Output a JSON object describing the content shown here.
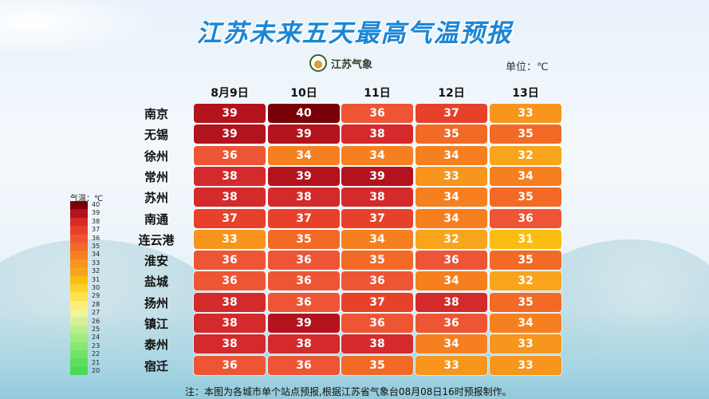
{
  "title": "江苏未来五天最高气温预报",
  "logo_text": "江苏气象",
  "unit": "单位：℃",
  "dates": [
    "8月9日",
    "10日",
    "11日",
    "12日",
    "13日"
  ],
  "cities": [
    "南京",
    "无锡",
    "徐州",
    "常州",
    "苏州",
    "南通",
    "连云港",
    "淮安",
    "盐城",
    "扬州",
    "镇江",
    "泰州",
    "宿迁"
  ],
  "temperatures": [
    [
      39,
      40,
      36,
      37,
      33
    ],
    [
      39,
      39,
      38,
      35,
      35
    ],
    [
      36,
      34,
      34,
      34,
      32
    ],
    [
      38,
      39,
      39,
      33,
      34
    ],
    [
      38,
      38,
      38,
      34,
      35
    ],
    [
      37,
      37,
      37,
      34,
      36
    ],
    [
      33,
      35,
      34,
      32,
      31
    ],
    [
      36,
      36,
      35,
      36,
      35
    ],
    [
      36,
      36,
      36,
      34,
      32
    ],
    [
      38,
      36,
      37,
      38,
      35
    ],
    [
      38,
      39,
      36,
      36,
      34
    ],
    [
      38,
      38,
      38,
      34,
      33
    ],
    [
      36,
      36,
      35,
      33,
      33
    ]
  ],
  "legend": {
    "title": "气温：℃",
    "levels": [
      40,
      39,
      38,
      37,
      36,
      35,
      34,
      33,
      32,
      31,
      30,
      29,
      28,
      27,
      26,
      25,
      24,
      23,
      22,
      21,
      20
    ]
  },
  "color_scale": {
    "40": "#7a0008",
    "39": "#b3131d",
    "38": "#d42a2c",
    "37": "#e8412a",
    "36": "#ee5535",
    "35": "#f26a26",
    "34": "#f6801f",
    "33": "#f7951d",
    "32": "#f8a41c",
    "31": "#fbbd12",
    "30": "#fcd22a",
    "29": "#fde24a",
    "28": "#fcec78",
    "27": "#eef59e",
    "26": "#d5f29a",
    "25": "#bcef8c",
    "24": "#a2ec7e",
    "23": "#89e872",
    "22": "#72e368",
    "21": "#5ede5f",
    "20": "#4bd95a"
  },
  "footnote": "注：本图为各城市单个站点预报,根据江苏省气象台08月08日16时预报制作。"
}
